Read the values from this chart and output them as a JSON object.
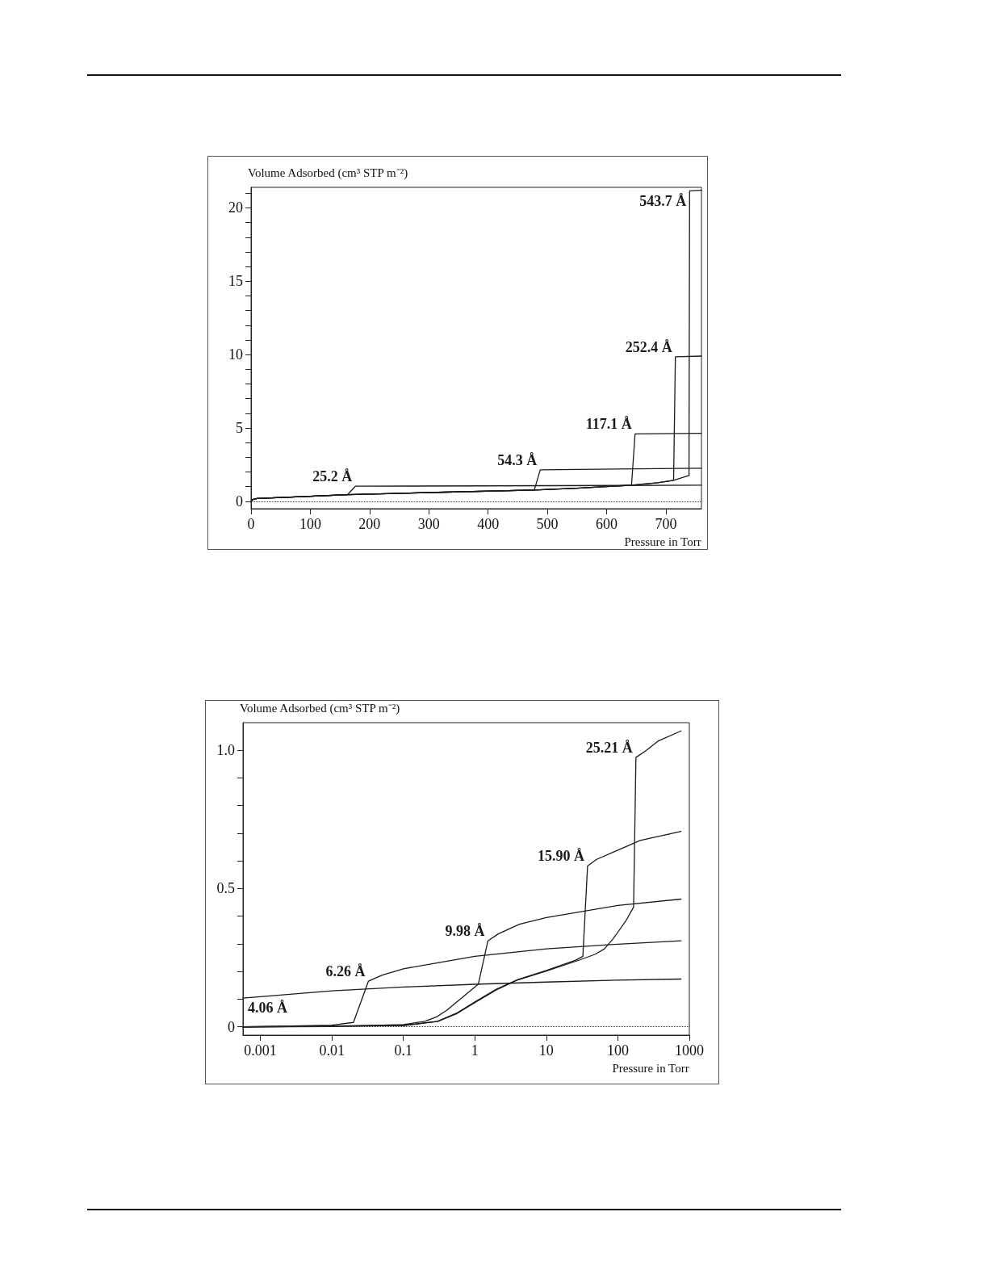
{
  "chart_data": [
    {
      "type": "line",
      "ylabel": "Volume Adsorbed (cm³ STP m⁻²)",
      "xlabel": "Pressure in Torr",
      "marker": "none",
      "line_style": "solid",
      "grid": false,
      "xlim": [
        0,
        760
      ],
      "xticks": [
        0,
        100,
        200,
        300,
        400,
        500,
        600,
        700
      ],
      "ylim": [
        -0.5,
        21.4
      ],
      "yticks": [
        0,
        {
          "value": 1,
          "label": null
        },
        {
          "value": 2,
          "label": null
        },
        {
          "value": 3,
          "label": null
        },
        {
          "value": 4,
          "label": null
        },
        5,
        {
          "value": 6,
          "label": null
        },
        {
          "value": 7,
          "label": null
        },
        {
          "value": 8,
          "label": null
        },
        {
          "value": 9,
          "label": null
        },
        10,
        {
          "value": 11,
          "label": null
        },
        {
          "value": 12,
          "label": null
        },
        {
          "value": 13,
          "label": null
        },
        {
          "value": 14,
          "label": null
        },
        15,
        {
          "value": 16,
          "label": null
        },
        {
          "value": 17,
          "label": null
        },
        {
          "value": 18,
          "label": null
        },
        {
          "value": 19,
          "label": null
        },
        20,
        {
          "value": 21,
          "label": null
        }
      ],
      "series": [
        {
          "name": "25.2 Å",
          "color": "#1a1a1a",
          "x": [
            0,
            3,
            10,
            100,
            163,
            176,
            760
          ],
          "values": [
            0,
            0.12,
            0.2,
            0.35,
            0.46,
            1.03,
            1.1
          ]
        },
        {
          "name": "54.3 Å",
          "color": "#1a1a1a",
          "x": [
            0,
            3,
            10,
            100,
            163,
            300,
            478,
            488,
            760
          ],
          "values": [
            0,
            0.12,
            0.2,
            0.35,
            0.46,
            0.6,
            0.77,
            2.15,
            2.26
          ]
        },
        {
          "name": "117.1 Å",
          "color": "#1a1a1a",
          "x": [
            0,
            3,
            10,
            100,
            163,
            300,
            478,
            550,
            642,
            648,
            760
          ],
          "values": [
            0,
            0.12,
            0.2,
            0.35,
            0.46,
            0.6,
            0.77,
            0.9,
            1.1,
            4.6,
            4.64
          ]
        },
        {
          "name": "252.4 Å",
          "color": "#1a1a1a",
          "x": [
            0,
            3,
            10,
            100,
            163,
            300,
            478,
            550,
            642,
            686,
            713,
            716,
            760
          ],
          "values": [
            0,
            0.12,
            0.2,
            0.35,
            0.46,
            0.6,
            0.77,
            0.9,
            1.1,
            1.27,
            1.43,
            9.85,
            9.9
          ]
        },
        {
          "name": "543.7 Å",
          "color": "#1a1a1a",
          "x": [
            0,
            3,
            10,
            100,
            163,
            300,
            478,
            550,
            642,
            686,
            713,
            739,
            740,
            760
          ],
          "values": [
            0,
            0.12,
            0.2,
            0.35,
            0.46,
            0.6,
            0.77,
            0.9,
            1.1,
            1.27,
            1.43,
            1.76,
            21.16,
            21.2
          ]
        }
      ],
      "ref_lines": [
        {
          "axis": "y",
          "value": 0,
          "line_style": "dotted"
        }
      ]
    },
    {
      "type": "line",
      "ylabel": "Volume Adsorbed (cm³ STP m⁻²)",
      "xlabel": "Pressure in Torr",
      "marker": "none",
      "line_style": "solid",
      "grid": false,
      "log": "x",
      "xlim": [
        0.00057,
        1000
      ],
      "xticks": [
        0.001,
        0.01,
        0.1,
        1,
        10,
        100,
        1000
      ],
      "ylim": [
        -0.03,
        1.1
      ],
      "yticks": [
        0,
        {
          "value": 0.1,
          "label": null
        },
        {
          "value": 0.2,
          "label": null
        },
        {
          "value": 0.3,
          "label": null
        },
        {
          "value": 0.4,
          "label": null
        },
        0.5,
        {
          "value": 0.6,
          "label": null
        },
        {
          "value": 0.7,
          "label": null
        },
        {
          "value": 0.8,
          "label": null
        },
        {
          "value": 0.9,
          "label": null
        },
        {
          "value": 1,
          "label": "1.0"
        }
      ],
      "series": [
        {
          "name": "4.06 Å",
          "color": "#1a1a1a",
          "x": [
            0.00057,
            0.01,
            0.1,
            1,
            10,
            100,
            766
          ],
          "values": [
            0.104,
            0.13,
            0.144,
            0.154,
            0.162,
            0.169,
            0.173
          ]
        },
        {
          "name": "6.26 Å",
          "color": "#1a1a1a",
          "x": [
            0.00057,
            0.001,
            0.01,
            0.02,
            0.0324,
            0.0506,
            0.1,
            1,
            10,
            100,
            766
          ],
          "values": [
            0,
            0.001,
            0.006,
            0.016,
            0.165,
            0.187,
            0.21,
            0.255,
            0.282,
            0.299,
            0.311
          ]
        },
        {
          "name": "9.98 Å",
          "color": "#1a1a1a",
          "x": [
            0.00057,
            0.01,
            0.1,
            0.2,
            0.296,
            0.404,
            1.12,
            1.52,
            2.12,
            4.2,
            10,
            100,
            766
          ],
          "values": [
            0,
            0.001,
            0.008,
            0.02,
            0.037,
            0.06,
            0.155,
            0.311,
            0.336,
            0.371,
            0.395,
            0.439,
            0.462
          ]
        },
        {
          "name": "15.90 Å",
          "color": "#1a1a1a",
          "x": [
            0.00057,
            0.1,
            0.3,
            0.55,
            1,
            2,
            4,
            10,
            25.7,
            32.4,
            37.7,
            50,
            100,
            205,
            766
          ],
          "values": [
            0,
            0.005,
            0.02,
            0.049,
            0.09,
            0.136,
            0.171,
            0.204,
            0.241,
            0.255,
            0.582,
            0.605,
            0.639,
            0.674,
            0.707
          ]
        },
        {
          "name": "25.21 Å",
          "color": "#1a1a1a",
          "x": [
            0.00057,
            0.1,
            0.3,
            0.55,
            1,
            2,
            4,
            10,
            30,
            47.6,
            65,
            85,
            128,
            166,
            179,
            251,
            363,
            766
          ],
          "values": [
            0,
            0.005,
            0.019,
            0.047,
            0.088,
            0.134,
            0.17,
            0.202,
            0.243,
            0.262,
            0.282,
            0.317,
            0.381,
            0.433,
            0.974,
            1.0,
            1.033,
            1.07
          ]
        }
      ],
      "ref_lines": [
        {
          "axis": "y",
          "value": 0,
          "line_style": "dotted"
        }
      ]
    }
  ]
}
